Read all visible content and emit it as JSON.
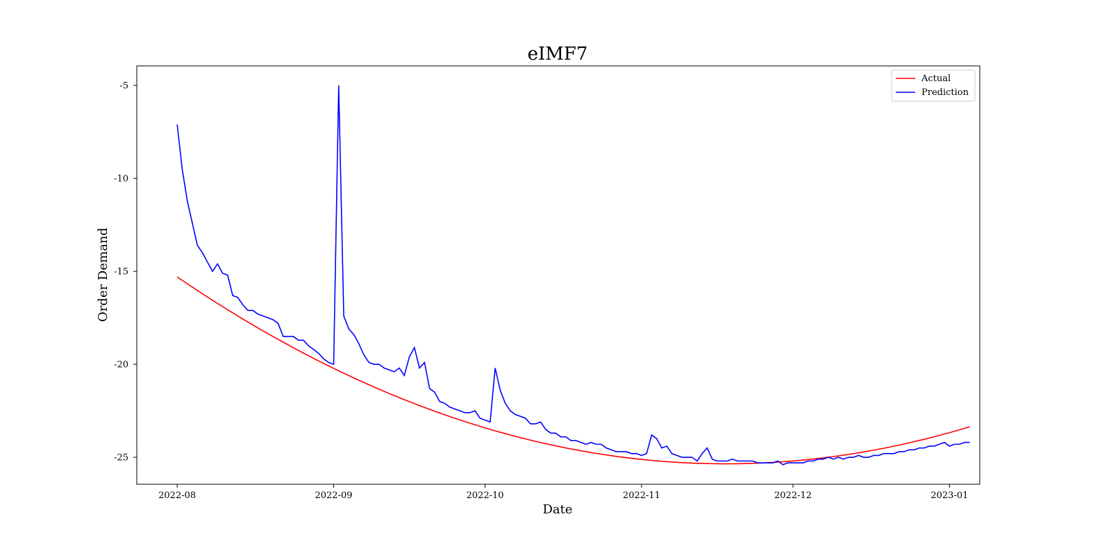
{
  "chart_data": {
    "type": "line",
    "title": "eIMF7",
    "xlabel": "Date",
    "ylabel": "Order Demand",
    "x_start": "2022-08-01",
    "x_end": "2022-12-31",
    "xlim": [
      "2022-07-24",
      "2023-01-07"
    ],
    "ylim": [
      -26.45,
      -3.95
    ],
    "x_ticks": [
      "2022-08-01",
      "2022-09-01",
      "2022-10-01",
      "2022-11-01",
      "2022-12-01",
      "2023-01-01"
    ],
    "x_tick_labels": [
      "2022-08",
      "2022-09",
      "2022-10",
      "2022-11",
      "2022-12",
      "2023-01"
    ],
    "y_ticks": [
      -5,
      -10,
      -15,
      -20,
      -25
    ],
    "y_tick_labels": [
      "-5",
      "-10",
      "-15",
      "-20",
      "-25"
    ],
    "grid": false,
    "legend": "top-right",
    "series": [
      {
        "name": "Actual",
        "color": "#ff0000",
        "form": "quadratic",
        "points": [
          [
            "2022-08-01",
            -15.3
          ],
          [
            "2022-11-17",
            -25.35
          ],
          [
            "2022-12-31",
            -23.75
          ]
        ]
      },
      {
        "name": "Prediction",
        "color": "#0000ff",
        "values": [
          -7.1,
          -9.5,
          -11.2,
          -12.4,
          -13.6,
          -14.0,
          -14.5,
          -15.0,
          -14.6,
          -15.1,
          -15.2,
          -16.3,
          -16.4,
          -16.8,
          -17.1,
          -17.1,
          -17.3,
          -17.4,
          -17.5,
          -17.6,
          -17.8,
          -18.5,
          -18.5,
          -18.5,
          -18.7,
          -18.7,
          -19.0,
          -19.2,
          -19.4,
          -19.7,
          -19.9,
          -20.0,
          -5.0,
          -17.4,
          -18.1,
          -18.4,
          -18.9,
          -19.5,
          -19.9,
          -20.0,
          -20.0,
          -20.2,
          -20.3,
          -20.4,
          -20.2,
          -20.6,
          -19.6,
          -19.1,
          -20.2,
          -19.9,
          -21.3,
          -21.5,
          -22.0,
          -22.1,
          -22.3,
          -22.4,
          -22.5,
          -22.6,
          -22.6,
          -22.5,
          -22.9,
          -23.0,
          -23.1,
          -20.2,
          -21.4,
          -22.1,
          -22.5,
          -22.7,
          -22.8,
          -22.9,
          -23.2,
          -23.2,
          -23.1,
          -23.5,
          -23.7,
          -23.7,
          -23.9,
          -23.9,
          -24.1,
          -24.1,
          -24.2,
          -24.3,
          -24.2,
          -24.3,
          -24.3,
          -24.5,
          -24.6,
          -24.7,
          -24.7,
          -24.7,
          -24.8,
          -24.8,
          -24.9,
          -24.8,
          -23.8,
          -24.0,
          -24.5,
          -24.4,
          -24.8,
          -24.9,
          -25.0,
          -25.0,
          -25.0,
          -25.2,
          -24.8,
          -24.5,
          -25.1,
          -25.2,
          -25.2,
          -25.2,
          -25.1,
          -25.2,
          -25.2,
          -25.2,
          -25.2,
          -25.3,
          -25.3,
          -25.3,
          -25.3,
          -25.2,
          -25.4,
          -25.3,
          -25.3,
          -25.3,
          -25.3,
          -25.2,
          -25.2,
          -25.1,
          -25.1,
          -25.0,
          -25.1,
          -25.0,
          -25.1,
          -25.0,
          -25.0,
          -24.9,
          -25.0,
          -25.0,
          -24.9,
          -24.9,
          -24.8,
          -24.8,
          -24.8,
          -24.7,
          -24.7,
          -24.6,
          -24.6,
          -24.5,
          -24.5,
          -24.4,
          -24.4,
          -24.3,
          -24.2,
          -24.4,
          -24.3,
          -24.3,
          -24.2,
          -24.2
        ]
      }
    ]
  }
}
